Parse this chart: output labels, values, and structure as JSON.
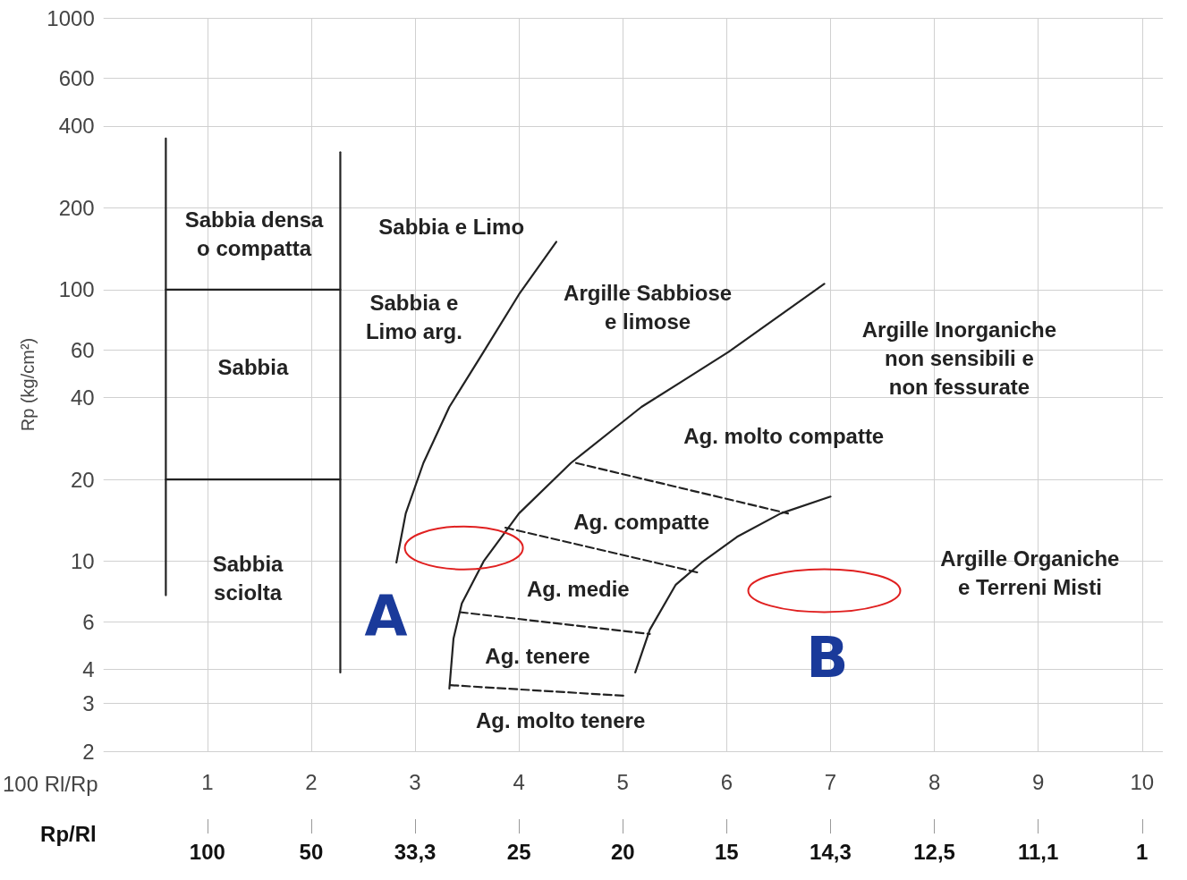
{
  "chart_data": {
    "type": "line",
    "xlabel": "100 Rl/Rp",
    "ylabel": "Rp (kg/cm²)",
    "x2label": "Rp/Rl",
    "xlim": [
      0,
      10.2
    ],
    "xticks": [
      1,
      2,
      3,
      4,
      5,
      6,
      7,
      8,
      9,
      10
    ],
    "ylim": [
      2,
      1000
    ],
    "yticks": [
      2,
      3,
      4,
      6,
      10,
      20,
      40,
      60,
      100,
      200,
      400,
      600,
      1000
    ],
    "log": "y",
    "grid": true,
    "marker": "none",
    "series": [
      {
        "color": "#222222",
        "line_style": "solid",
        "x": [
          0.6,
          0.6
        ],
        "values": [
          360,
          7.5
        ]
      },
      {
        "color": "#222222",
        "line_style": "solid",
        "x": [
          2.28,
          2.28
        ],
        "values": [
          320,
          3.9
        ]
      },
      {
        "color": "#222222",
        "line_style": "solid",
        "x": [
          0.6,
          2.28
        ],
        "values": [
          100,
          100
        ]
      },
      {
        "color": "#222222",
        "line_style": "solid",
        "x": [
          0.6,
          2.28
        ],
        "values": [
          20,
          20
        ]
      },
      {
        "color": "#222222",
        "line_style": "solid",
        "x": [
          2.82,
          2.91,
          3.08,
          3.33,
          3.66,
          4.0,
          4.36
        ],
        "values": [
          9.9,
          15,
          23,
          37,
          59,
          96,
          150
        ]
      },
      {
        "color": "#222222",
        "line_style": "solid",
        "x": [
          3.33,
          3.37,
          3.45,
          3.66,
          4.0,
          4.5,
          5.18,
          6.02,
          6.94
        ],
        "values": [
          3.4,
          5.2,
          7,
          10,
          15,
          23,
          37,
          59,
          105
        ]
      },
      {
        "color": "#222222",
        "line_style": "solid",
        "x": [
          5.12,
          5.26,
          5.51,
          5.76,
          6.1,
          6.52,
          7.0
        ],
        "values": [
          3.9,
          5.6,
          8.2,
          9.9,
          12.3,
          15,
          17.3
        ]
      },
      {
        "color": "#222222",
        "line_style": "dashed",
        "x": [
          4.55,
          6.59
        ],
        "values": [
          23,
          15
        ]
      },
      {
        "color": "#222222",
        "line_style": "dashed",
        "x": [
          3.87,
          5.72
        ],
        "values": [
          13.3,
          9.1
        ]
      },
      {
        "color": "#222222",
        "line_style": "dashed",
        "x": [
          3.43,
          5.26
        ],
        "values": [
          6.5,
          5.4
        ]
      },
      {
        "color": "#222222",
        "line_style": "dashed",
        "x": [
          3.34,
          5.01
        ],
        "values": [
          3.5,
          3.2
        ]
      }
    ],
    "annotations": [
      "Sabbia densa\no compatta",
      "Sabbia",
      "Sabbia\nsciolta",
      "Sabbia e Limo",
      "Sabbia e\nLimo arg.",
      "Argille Sabbiose\ne limose",
      "Argille Inorganiche\nnon sensibili e\nnon fessurate",
      "Ag. molto compatte",
      "Ag. compatte",
      "Ag. medie",
      "Ag. tenere",
      "Ag. molto tenere",
      "Argille Organiche\ne Terreni Misti",
      "A",
      "B",
      "100",
      "50",
      "33,3",
      "25",
      "20",
      "15",
      "14,3",
      "12,5",
      "11,1",
      "1"
    ]
  }
}
